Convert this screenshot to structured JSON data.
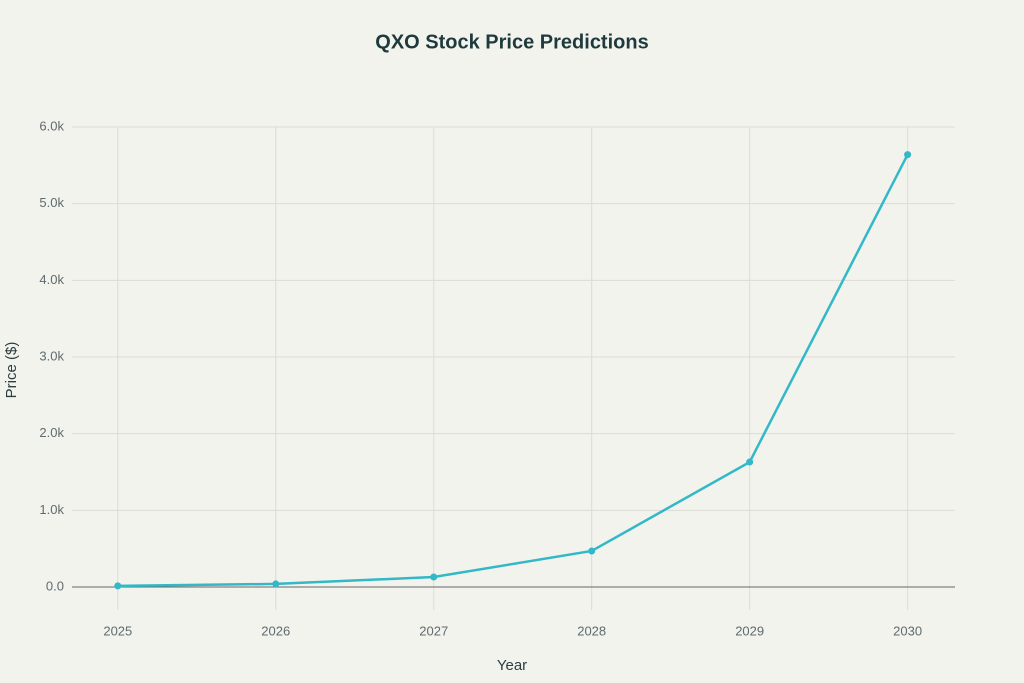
{
  "chart_data": {
    "type": "line",
    "title": "QXO Stock Price Predictions",
    "x_label": "Year",
    "y_label": "Price ($)",
    "x": [
      2025,
      2026,
      2027,
      2028,
      2029,
      2030
    ],
    "series": [
      {
        "name": "Price",
        "color": "#32b8c6",
        "values": [
          15,
          40,
          130,
          470,
          1630,
          5640
        ]
      }
    ],
    "xlim": [
      2024.71,
      2030.3
    ],
    "xticks": [
      2025,
      2026,
      2027,
      2028,
      2029,
      2030
    ],
    "ylim": [
      -300,
      6000
    ],
    "yticks": [
      {
        "value": 0,
        "label": "0.0"
      },
      {
        "value": 1000,
        "label": "1.0k"
      },
      {
        "value": 2000,
        "label": "2.0k"
      },
      {
        "value": 3000,
        "label": "3.0k"
      },
      {
        "value": 4000,
        "label": "4.0k"
      },
      {
        "value": 5000,
        "label": "5.0k"
      },
      {
        "value": 6000,
        "label": "6.0k"
      }
    ],
    "grid": true
  }
}
